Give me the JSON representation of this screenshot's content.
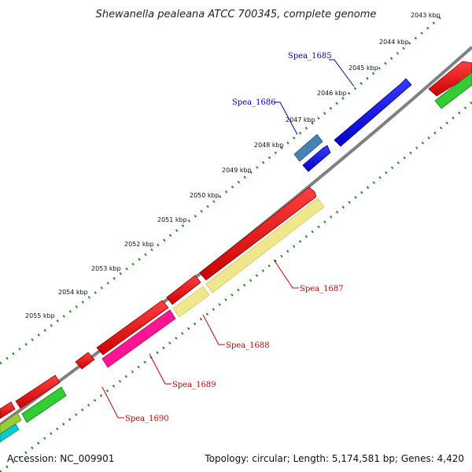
{
  "title": "Shewanella pealeana ATCC 700345, complete genome",
  "footer": {
    "accession": "Accession: NC_009901",
    "topology": "Topology: circular; Length: 5,174,581 bp; Genes: 4,420"
  },
  "ticks": [
    {
      "label": "2043 kbp"
    },
    {
      "label": "2044 kbp"
    },
    {
      "label": "2045 kbp"
    },
    {
      "label": "2046 kbp"
    },
    {
      "label": "2047 kbp"
    },
    {
      "label": "2048 kbp"
    },
    {
      "label": "2049 kbp"
    },
    {
      "label": "2050 kbp"
    },
    {
      "label": "2051 kbp"
    },
    {
      "label": "2052 kbp"
    },
    {
      "label": "2053 kbp"
    },
    {
      "label": "2054 kbp"
    },
    {
      "label": "2055 kbp"
    }
  ],
  "gene_labels": [
    {
      "name": "Spea_1685",
      "color": "#0000cc"
    },
    {
      "name": "Spea_1686",
      "color": "#0000cc"
    },
    {
      "name": "Spea_1687",
      "color": "#cc0000"
    },
    {
      "name": "Spea_1688",
      "color": "#cc0000"
    },
    {
      "name": "Spea_1689",
      "color": "#cc0000"
    },
    {
      "name": "Spea_1690",
      "color": "#cc0000"
    }
  ],
  "colors": {
    "backbone": "#808080",
    "tick_marks": "#228b22",
    "forward_cds": "#0000ee",
    "forward_cds_light": "#4682b4",
    "reverse_cds": "#ee0000",
    "category_yellow": "#f0e68c",
    "category_magenta": "#ff1493",
    "category_green": "#32cd32",
    "category_cyan": "#00ced1",
    "category_olive": "#9acd32"
  }
}
